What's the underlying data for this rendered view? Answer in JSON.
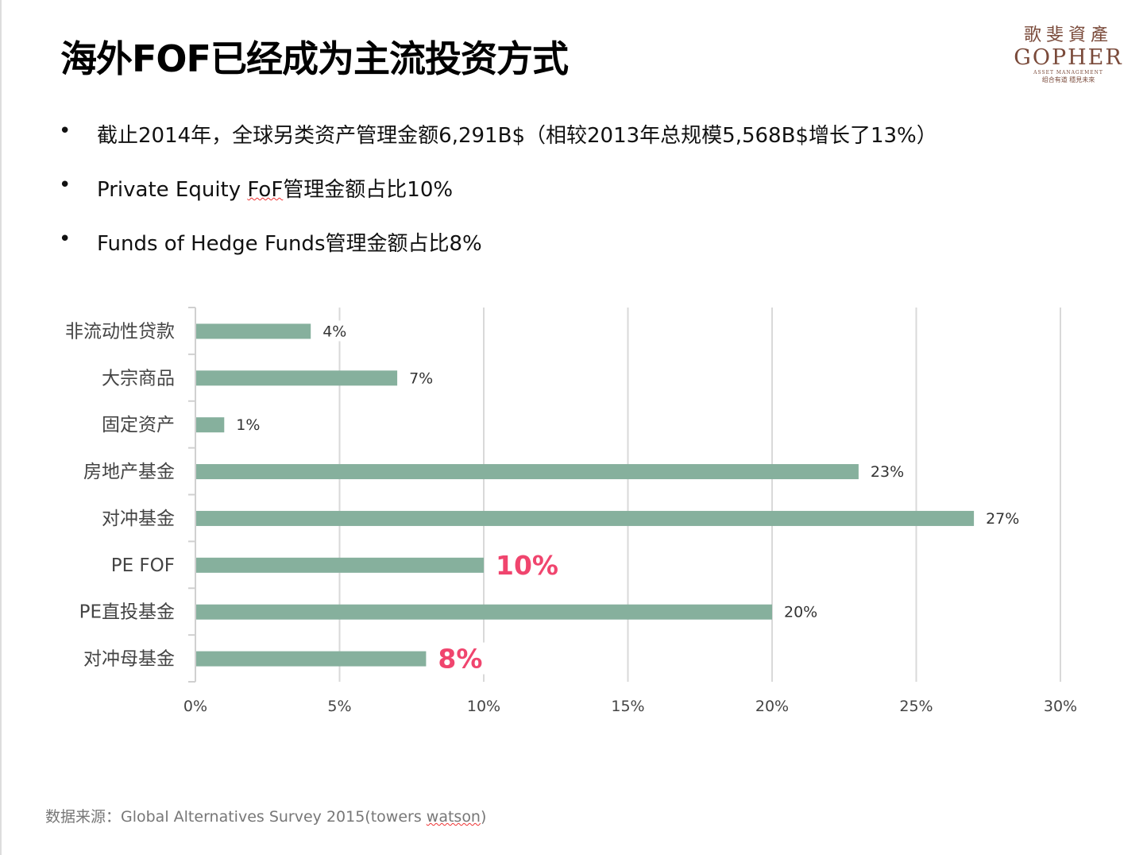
{
  "title": "海外FOF已经成为主流投资方式",
  "logo": {
    "cn": "歌斐資產",
    "en": "GOPHER",
    "sub": "ASSET MANAGEMENT",
    "motto": "组合有道 穩見未來"
  },
  "bullets": [
    {
      "text": "截止2014年，全球另类资产管理金额6,291B$（相较2013年总规模5,568B$增长了13%）"
    },
    {
      "pre": "Private Equity ",
      "squiggle": "FoF",
      "post": "管理金额占比10%"
    },
    {
      "text": "Funds of Hedge Funds管理金额占比8%"
    }
  ],
  "bullet_symbol": "•",
  "chart_data": {
    "type": "bar",
    "orientation": "horizontal",
    "categories": [
      "非流动性贷款",
      "大宗商品",
      "固定资产",
      "房地产基金",
      "对冲基金",
      "PE FOF",
      "PE直投基金",
      "对冲母基金"
    ],
    "values": [
      4,
      7,
      1,
      23,
      27,
      10,
      20,
      8
    ],
    "labels": [
      "4%",
      "7%",
      "1%",
      "23%",
      "27%",
      "10%",
      "20%",
      "8%"
    ],
    "highlight": [
      false,
      false,
      false,
      false,
      false,
      true,
      false,
      true
    ],
    "xlim": [
      0,
      30
    ],
    "xticks": [
      "0%",
      "5%",
      "10%",
      "15%",
      "20%",
      "25%",
      "30%"
    ],
    "grid": true,
    "bar_color": "#86b09d",
    "highlight_color": "#f0456e"
  },
  "source": {
    "pre": "数据来源：Global Alternatives Survey 2015(towers ",
    "squiggle": "watson",
    "post": ")"
  }
}
